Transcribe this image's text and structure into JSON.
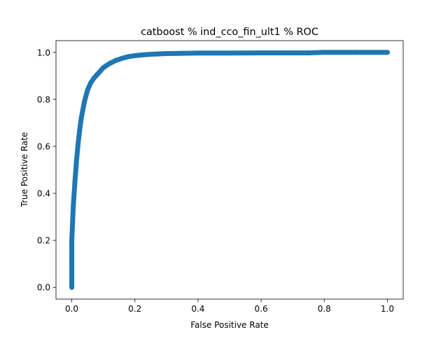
{
  "chart_data": {
    "type": "line",
    "title": "catboost % ind_cco_fin_ult1 % ROC",
    "xlabel": "False Positive Rate",
    "ylabel": "True Positive Rate",
    "xlim": [
      -0.05,
      1.05
    ],
    "ylim": [
      -0.05,
      1.05
    ],
    "xticks": [
      0.0,
      0.2,
      0.4,
      0.6,
      0.8,
      1.0
    ],
    "yticks": [
      0.0,
      0.2,
      0.4,
      0.6,
      0.8,
      1.0
    ],
    "xtick_labels": [
      "0.0",
      "0.2",
      "0.4",
      "0.6",
      "0.8",
      "1.0"
    ],
    "ytick_labels": [
      "0.0",
      "0.2",
      "0.4",
      "0.6",
      "0.8",
      "1.0"
    ],
    "grid": false,
    "legend": "none",
    "series": [
      {
        "color": "#1f77b4",
        "marker": "dot",
        "x": [
          0.0,
          0.0,
          0.0,
          0.005,
          0.01,
          0.015,
          0.02,
          0.025,
          0.03,
          0.04,
          0.05,
          0.06,
          0.07,
          0.08,
          0.09,
          0.1,
          0.12,
          0.14,
          0.16,
          0.18,
          0.2,
          0.22,
          0.25,
          0.3,
          0.35,
          0.4,
          0.5,
          0.6,
          0.7,
          0.75,
          0.77,
          0.8,
          0.9,
          1.0
        ],
        "y": [
          0.0,
          0.1,
          0.2,
          0.35,
          0.45,
          0.54,
          0.61,
          0.67,
          0.72,
          0.79,
          0.84,
          0.87,
          0.89,
          0.905,
          0.92,
          0.935,
          0.953,
          0.966,
          0.975,
          0.982,
          0.986,
          0.989,
          0.992,
          0.995,
          0.996,
          0.997,
          0.997,
          0.998,
          0.998,
          0.998,
          0.999,
          1.0,
          1.0,
          1.0
        ]
      }
    ]
  }
}
